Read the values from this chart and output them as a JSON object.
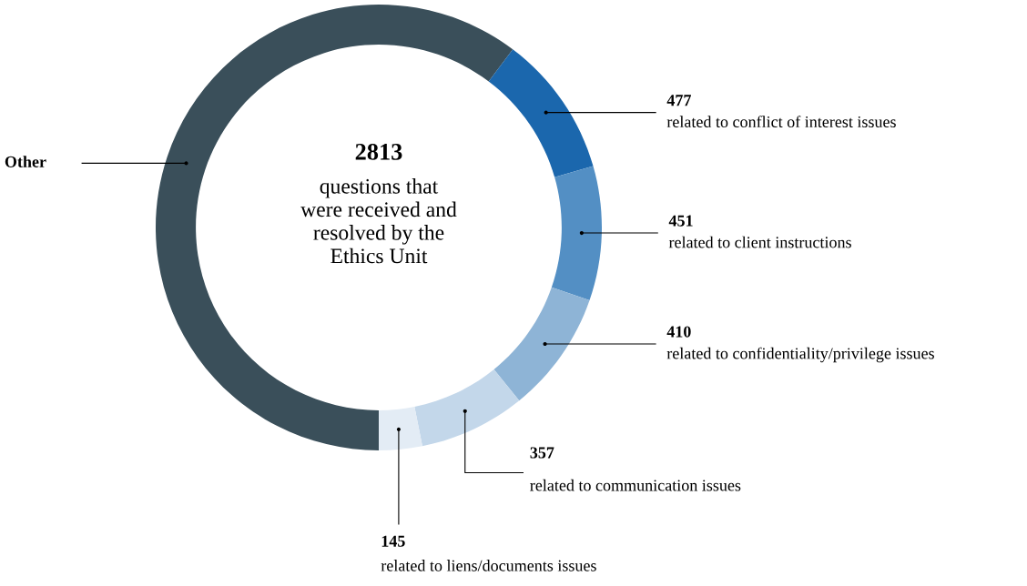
{
  "chart_data": {
    "type": "donut",
    "categories": [
      "Other",
      "related to conflict of interest issues",
      "related to client instructions",
      "related to confidentiality/privilege issues",
      "related to communication issues",
      "related to liens/documents issues"
    ],
    "values": [
      2790,
      477,
      451,
      410,
      357,
      145
    ],
    "value_labels": [
      null,
      "477",
      "451",
      "410",
      "357",
      "145"
    ],
    "colors": [
      "#3a4f5a",
      "#1b67ad",
      "#538fc4",
      "#8eb4d6",
      "#c3d7ea",
      "#e3ecf5"
    ],
    "annotations": [
      "2813",
      "questions that\nwere received and\nresolved by the\nEthics Unit"
    ],
    "legend": false
  }
}
